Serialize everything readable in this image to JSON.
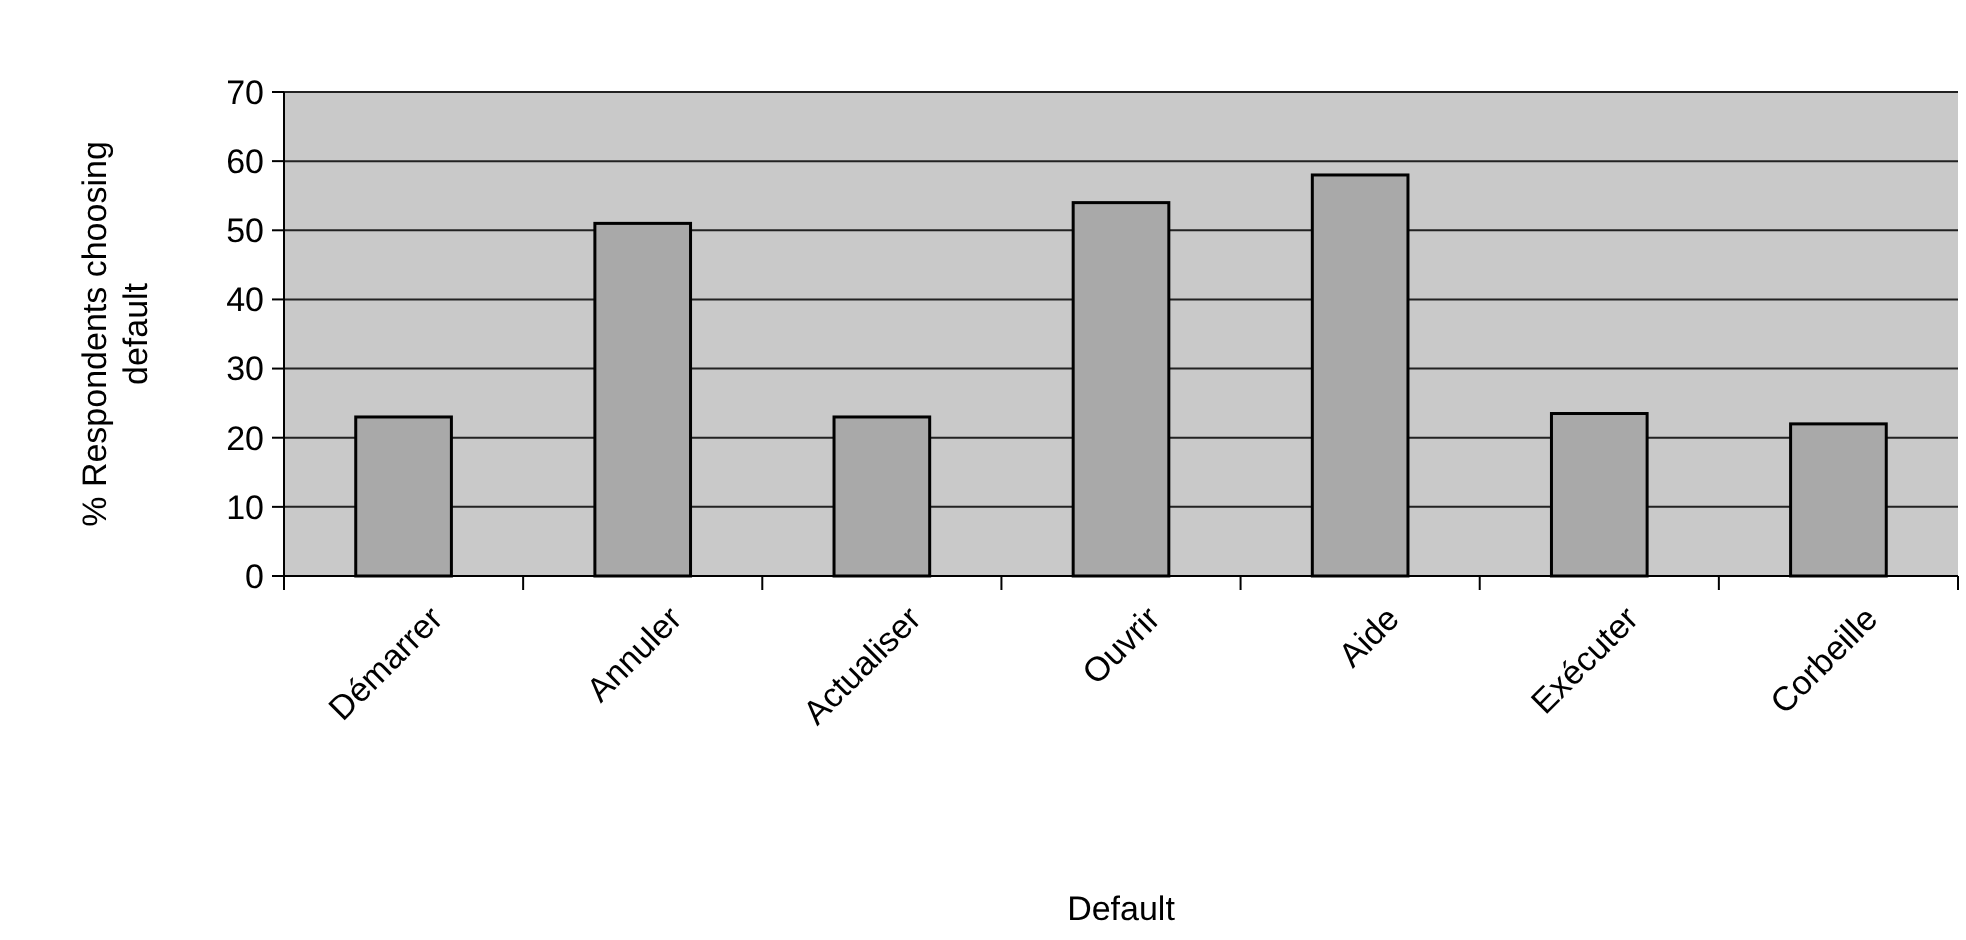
{
  "chart_data": {
    "type": "bar",
    "xlabel": "Default",
    "ylabel": "% Respondents choosing default",
    "categories": [
      "Démarrer",
      "Annuler",
      "Actualiser",
      "Ouvrir",
      "Aide",
      "Exécuter",
      "Corbeille"
    ],
    "values": [
      23,
      51,
      23,
      54,
      58,
      23.5,
      22
    ],
    "color": "#a9a9a9",
    "ylim": [
      0,
      70
    ],
    "yticks": [
      0,
      10,
      20,
      30,
      40,
      50,
      60,
      70
    ],
    "grid": "y"
  }
}
